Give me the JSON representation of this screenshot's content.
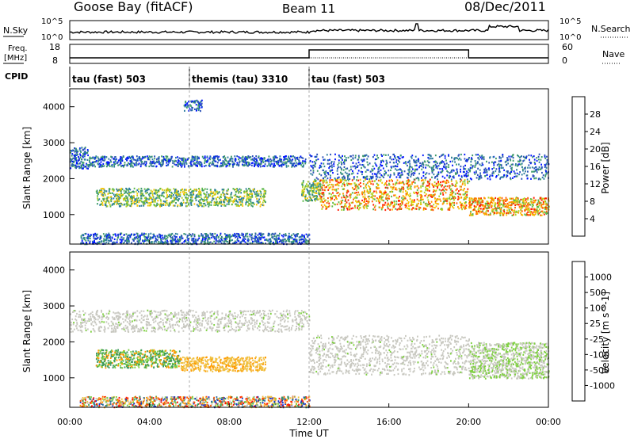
{
  "header": {
    "station": "Goose Bay (fitACF)",
    "beam": "Beam 11",
    "date": "08/Dec/2011"
  },
  "top_panels": {
    "nsky_label": "N.Sky",
    "nsky_ticks": [
      "10^5",
      "10^0"
    ],
    "nsearch_label": "N.Search",
    "nsearch_ticks": [
      "10^5",
      "10^0"
    ],
    "freq_label_top": "Freq.",
    "freq_label_bottom": "[MHz]",
    "freq_ticks": [
      "18",
      "8"
    ],
    "nave_label": "Nave",
    "nave_ticks": [
      "60",
      "0"
    ],
    "cpid_label": "CPID",
    "cpid_segments": [
      {
        "label": "tau (fast) 503",
        "start": 0,
        "end": 6
      },
      {
        "label": "themis (tau) 3310",
        "start": 6,
        "end": 12
      },
      {
        "label": "tau (fast) 503",
        "start": 12,
        "end": 24
      }
    ]
  },
  "x_axis": {
    "label": "Time UT",
    "ticks": [
      "00:00",
      "04:00",
      "08:00",
      "12:00",
      "16:00",
      "20:00",
      "00:00"
    ],
    "range_hours": [
      0,
      24
    ]
  },
  "power_panel": {
    "ylabel": "Slant Range [km]",
    "yticks": [
      "4000",
      "3000",
      "2000",
      "1000"
    ],
    "colorbar_label": "Power [dB]",
    "colorbar_ticks": [
      "28",
      "24",
      "20",
      "16",
      "12",
      "8",
      "4"
    ],
    "colors": [
      "#0016ff",
      "#2a50b8",
      "#2f7ea0",
      "#3c9a6a",
      "#5cb848",
      "#b3d326",
      "#f5c400",
      "#ff9600",
      "#ff5a00",
      "#ff1a00"
    ]
  },
  "velocity_panel": {
    "ylabel": "Slant Range [km]",
    "yticks": [
      "4000",
      "3000",
      "2000",
      "1000"
    ],
    "colorbar_label": "Velocity [m s^-1]",
    "colorbar_ticks": [
      "1000",
      "500",
      "100",
      "25",
      "-25",
      "-100",
      "-500",
      "-1000"
    ],
    "colors": [
      "#1a33c8",
      "#2f6fa0",
      "#3c9a5a",
      "#7ed040",
      "#c8c8c0",
      "#f0c040",
      "#ff9a00",
      "#ff5500",
      "#ff1000"
    ]
  },
  "chart_data": {
    "type": "heatmap",
    "x": "time (hours UT)",
    "y": "slant range (km)",
    "xlim": [
      0,
      24
    ],
    "ylim": [
      180,
      4500
    ],
    "power_regions": [
      {
        "t0": 0.0,
        "t1": 0.9,
        "r0": 2300,
        "r1": 2900,
        "level": "low"
      },
      {
        "t0": 0.9,
        "t1": 11.8,
        "r0": 2350,
        "r1": 2650,
        "level": "low"
      },
      {
        "t0": 1.3,
        "t1": 9.8,
        "r0": 1250,
        "r1": 1750,
        "level": "mid"
      },
      {
        "t0": 11.6,
        "t1": 12.6,
        "r0": 1400,
        "r1": 2000,
        "level": "mid"
      },
      {
        "t0": 12.5,
        "t1": 20.0,
        "r0": 1150,
        "r1": 2000,
        "level": "high"
      },
      {
        "t0": 20.0,
        "t1": 24.0,
        "r0": 1000,
        "r1": 1500,
        "level": "high"
      },
      {
        "t0": 12.0,
        "t1": 24.0,
        "r0": 2000,
        "r1": 2700,
        "level": "low"
      },
      {
        "t0": 0.5,
        "t1": 12.0,
        "r0": 200,
        "r1": 500,
        "level": "low"
      },
      {
        "t0": 5.7,
        "t1": 6.6,
        "r0": 3900,
        "r1": 4200,
        "level": "low"
      }
    ],
    "velocity_regions": [
      {
        "t0": 0.0,
        "t1": 12.0,
        "r0": 2300,
        "r1": 2900,
        "level": "grey"
      },
      {
        "t0": 1.3,
        "t1": 5.5,
        "r0": 1300,
        "r1": 1800,
        "level": "green-orange"
      },
      {
        "t0": 5.5,
        "t1": 9.8,
        "r0": 1200,
        "r1": 1600,
        "level": "yellow"
      },
      {
        "t0": 12.0,
        "t1": 20.0,
        "r0": 1100,
        "r1": 2200,
        "level": "grey"
      },
      {
        "t0": 20.0,
        "t1": 24.0,
        "r0": 1000,
        "r1": 2000,
        "level": "grey-green"
      },
      {
        "t0": 0.5,
        "t1": 12.0,
        "r0": 200,
        "r1": 500,
        "level": "mixed"
      }
    ]
  }
}
